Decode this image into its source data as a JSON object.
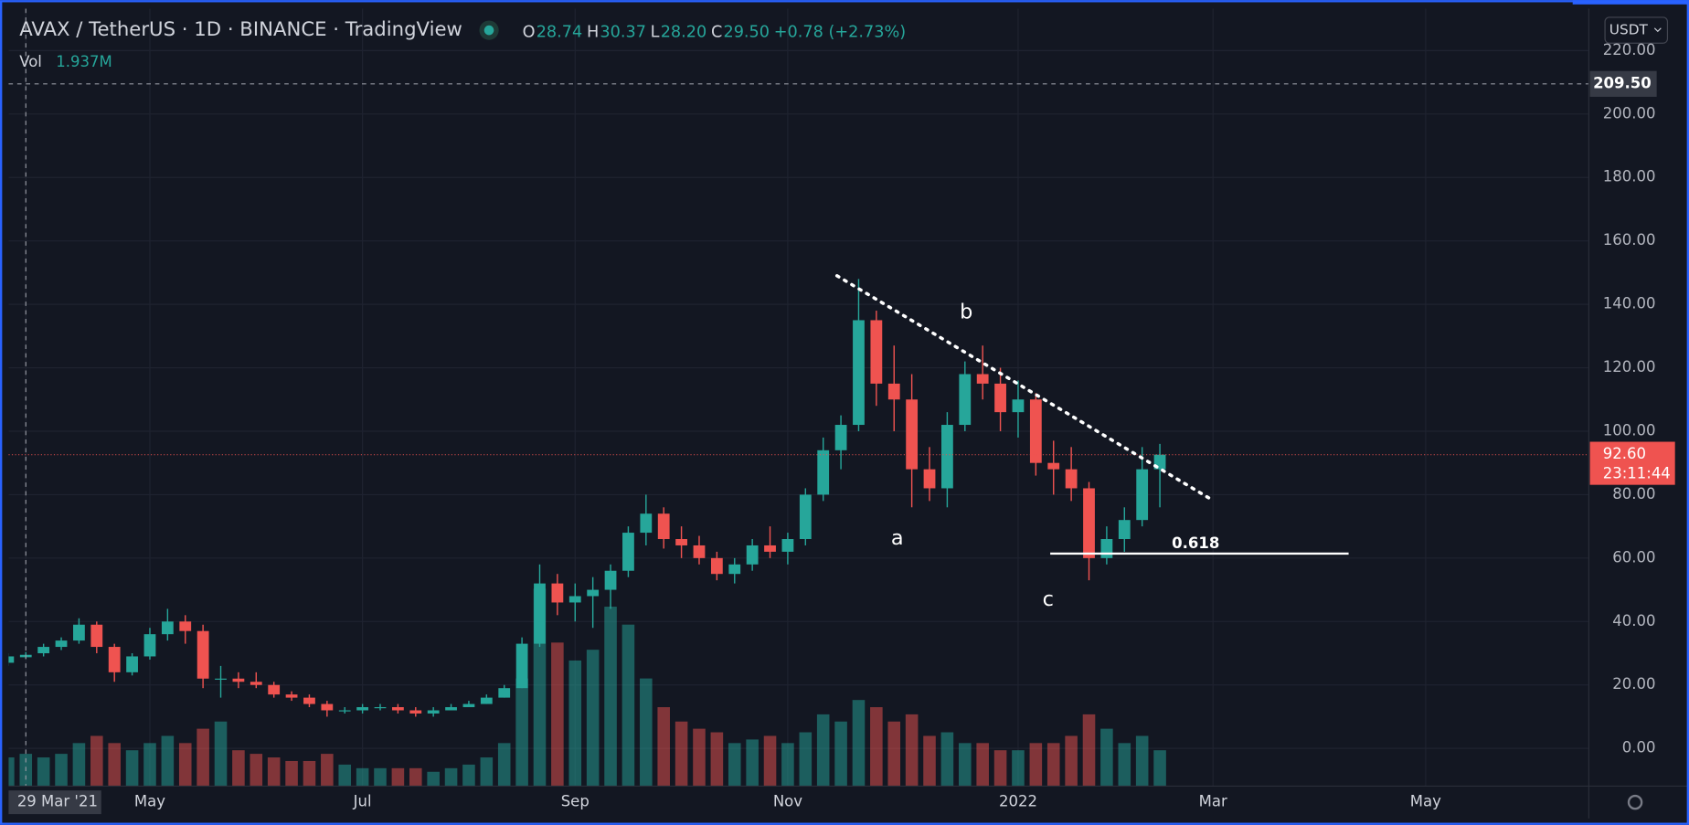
{
  "chart_data": {
    "type": "candlestick",
    "title": "AVAX / TetherUS · 1D · BINANCE · TradingView",
    "ohlc_legend": {
      "labels": [
        "O",
        "H",
        "L",
        "C"
      ],
      "values": [
        28.74,
        30.37,
        28.2,
        29.5
      ],
      "value_labels": [
        "28.74",
        "30.37",
        "28.20",
        "29.50"
      ],
      "change": "+0.78 (+2.73%)"
    },
    "volume_legend": {
      "label": "Vol",
      "value": "1.937M"
    },
    "currency": "USDT",
    "categories": [
      null,
      "29 Mar '21",
      null,
      null,
      null,
      null,
      null,
      null,
      "May",
      null,
      null,
      null,
      null,
      null,
      null,
      null,
      null,
      null,
      null,
      null,
      "Jul",
      null,
      null,
      null,
      null,
      null,
      null,
      null,
      null,
      null,
      null,
      null,
      "Sep",
      null,
      null,
      null,
      null,
      null,
      null,
      null,
      null,
      null,
      null,
      null,
      "Nov",
      null,
      null,
      null,
      null,
      null,
      null,
      null,
      null,
      null,
      null,
      null,
      null,
      "2022",
      null,
      null,
      null,
      null,
      null,
      null,
      null,
      null,
      null,
      null,
      "Mar",
      null,
      null,
      null,
      null,
      null,
      null,
      null,
      null,
      null,
      null,
      null,
      "May",
      null,
      null,
      null,
      null,
      null,
      null,
      null,
      null
    ],
    "open": [
      27,
      28.74,
      30,
      32,
      34,
      39,
      32,
      24,
      29,
      36,
      40,
      37,
      22,
      22,
      21,
      20,
      17,
      16,
      14,
      12,
      12,
      13,
      13,
      12,
      11,
      12,
      13,
      14,
      16,
      19,
      33,
      52,
      46,
      48,
      50,
      56,
      68,
      74,
      66,
      64,
      60,
      55,
      58,
      64,
      62,
      66,
      80,
      94,
      102,
      135,
      115,
      110,
      88,
      82,
      102,
      118,
      115,
      106,
      110,
      90,
      88,
      82,
      60,
      66,
      72,
      88,
      null,
      null,
      null,
      null,
      null,
      null,
      null,
      null,
      null,
      null,
      null,
      null,
      null,
      null,
      null,
      null,
      null,
      null,
      null,
      null,
      null,
      null,
      null
    ],
    "high": [
      30,
      30.37,
      33,
      35,
      41,
      40,
      33,
      30,
      38,
      44,
      42,
      39,
      26,
      24,
      24,
      21,
      18,
      17,
      15,
      13,
      14,
      14,
      14,
      13,
      13,
      14,
      15,
      17,
      20,
      35,
      58,
      55,
      52,
      54,
      58,
      70,
      80,
      76,
      70,
      67,
      62,
      60,
      66,
      70,
      68,
      82,
      98,
      105,
      148,
      138,
      127,
      118,
      95,
      106,
      122,
      127,
      120,
      116,
      112,
      97,
      95,
      84,
      70,
      76,
      95,
      96,
      null,
      null,
      null,
      null,
      null,
      null,
      null,
      null,
      null,
      null,
      null,
      null,
      null,
      null,
      null,
      null,
      null,
      null,
      null,
      null,
      null,
      null,
      null
    ],
    "low": [
      26,
      28.2,
      29,
      31,
      33,
      30,
      21,
      23,
      28,
      34,
      33,
      19,
      16,
      19,
      19,
      16,
      15,
      13,
      10,
      11,
      11,
      12,
      11,
      10,
      10,
      12,
      13,
      14,
      16,
      19,
      32,
      42,
      40,
      38,
      44,
      54,
      64,
      63,
      60,
      58,
      53,
      52,
      56,
      60,
      58,
      64,
      78,
      88,
      100,
      108,
      100,
      76,
      78,
      76,
      100,
      110,
      100,
      98,
      86,
      80,
      78,
      53,
      58,
      62,
      70,
      76,
      null,
      null,
      null,
      null,
      null,
      null,
      null,
      null,
      null,
      null,
      null,
      null,
      null,
      null,
      null,
      null,
      null,
      null,
      null,
      null,
      null,
      null,
      null
    ],
    "close": [
      29,
      29.5,
      32,
      34,
      39,
      32,
      24,
      29,
      36,
      40,
      37,
      22,
      22,
      21,
      20,
      17,
      16,
      14,
      12,
      12,
      13,
      13,
      12,
      11,
      12,
      13,
      14,
      16,
      19,
      33,
      52,
      46,
      48,
      50,
      56,
      68,
      74,
      66,
      64,
      60,
      55,
      58,
      64,
      62,
      66,
      80,
      94,
      102,
      135,
      115,
      110,
      88,
      82,
      102,
      118,
      115,
      106,
      110,
      90,
      88,
      82,
      60,
      66,
      72,
      88,
      92.6,
      null,
      null,
      null,
      null,
      null,
      null,
      null,
      null,
      null,
      null,
      null,
      null,
      null,
      null,
      null,
      null,
      null,
      null,
      null,
      null,
      null,
      null,
      null
    ],
    "volume": [
      8,
      9,
      8,
      9,
      12,
      14,
      12,
      10,
      12,
      14,
      12,
      16,
      18,
      10,
      9,
      8,
      7,
      7,
      9,
      6,
      5,
      5,
      5,
      5,
      4,
      5,
      6,
      8,
      12,
      30,
      55,
      40,
      35,
      38,
      50,
      45,
      30,
      22,
      18,
      16,
      15,
      12,
      13,
      14,
      12,
      15,
      20,
      18,
      24,
      22,
      18,
      20,
      14,
      15,
      12,
      12,
      10,
      10,
      12,
      12,
      14,
      20,
      16,
      12,
      14,
      10,
      null,
      null,
      null,
      null,
      null,
      null,
      null,
      null,
      null,
      null,
      null,
      null,
      null,
      null,
      null,
      null,
      null,
      null,
      null,
      null,
      null,
      null,
      null
    ],
    "up_color": "#26a69a",
    "down_color": "#ef5350",
    "ylim": [
      -11.9,
      233.2
    ],
    "volume_lim": [
      0,
      60
    ],
    "yticks": [
      {
        "value": 0,
        "label": "0.00"
      },
      {
        "value": 20,
        "label": "20.00"
      },
      {
        "value": 40,
        "label": "40.00"
      },
      {
        "value": 60,
        "label": "60.00"
      },
      {
        "value": 80,
        "label": "80.00"
      },
      {
        "value": 100,
        "label": "100.00"
      },
      {
        "value": 120,
        "label": "120.00"
      },
      {
        "value": 140,
        "label": "140.00"
      },
      {
        "value": 160,
        "label": "160.00"
      },
      {
        "value": 180,
        "label": "180.00"
      },
      {
        "value": 200,
        "label": "200.00"
      },
      {
        "value": 220,
        "label": "220.00"
      }
    ],
    "grid": true,
    "last_price": {
      "value": 92.6,
      "label": "92.60",
      "countdown": "23:11:44"
    },
    "crosshair_price": {
      "value": 209.5,
      "label": "209.50"
    },
    "annotations": {
      "a": "a",
      "b": "b",
      "c": "c",
      "fib": "0.618"
    }
  }
}
